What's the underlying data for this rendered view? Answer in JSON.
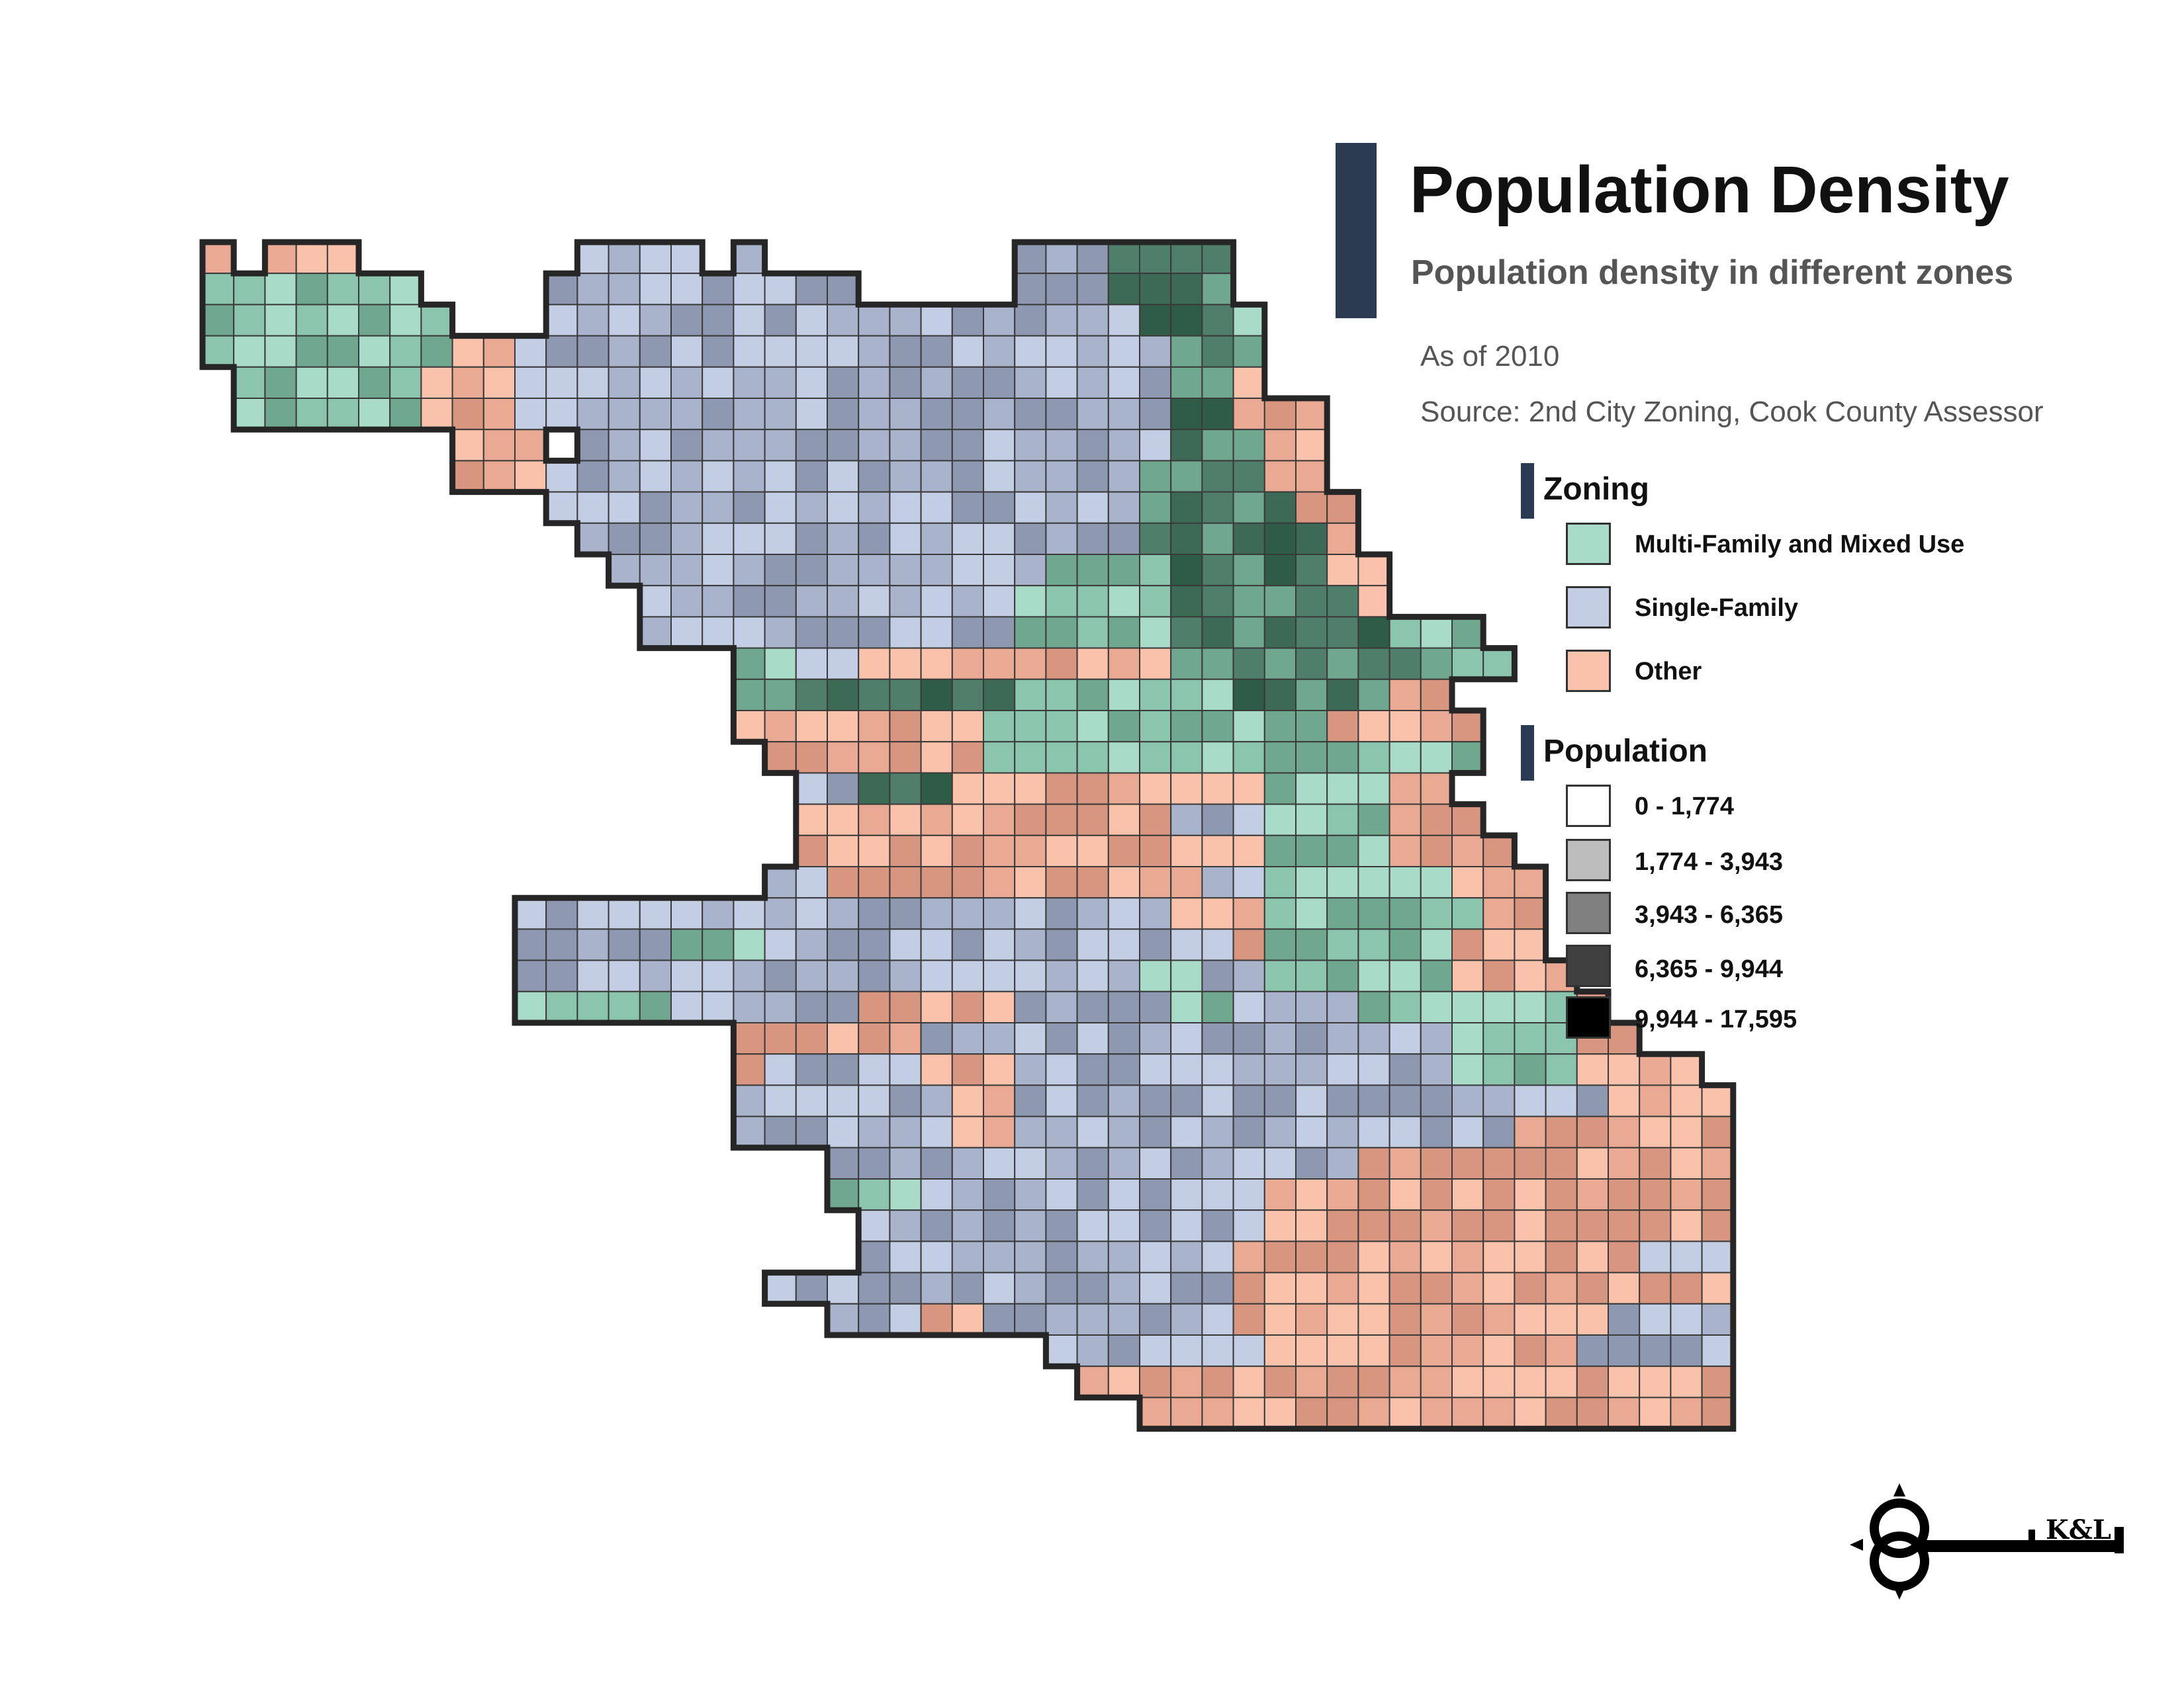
{
  "title": "Population Density",
  "subtitle": "Population density in different zones",
  "as_of": "As of 2010",
  "source": "Source: 2nd City Zoning, Cook County Assessor",
  "legend": {
    "zoning": {
      "title": "Zoning",
      "items": [
        {
          "label": "Multi-Family and Mixed Use",
          "color": "#a8dcc8"
        },
        {
          "label": "Single-Family",
          "color": "#c3cde3"
        },
        {
          "label": "Other",
          "color": "#fbc2ab"
        }
      ]
    },
    "population": {
      "title": "Population",
      "items": [
        {
          "label": "0 - 1,774",
          "color": "#ffffff"
        },
        {
          "label": "1,774 - 3,943",
          "color": "#bdbdbd"
        },
        {
          "label": "3,943 - 6,365",
          "color": "#808080"
        },
        {
          "label": "6,365 - 9,944",
          "color": "#404040"
        },
        {
          "label": "9,944 - 17,595",
          "color": "#000000"
        }
      ]
    }
  },
  "logo": {
    "text": "K&L",
    "icon": "key-logo-icon"
  },
  "colors": {
    "title_bar": "#2a3b52",
    "outline": "#262626"
  }
}
